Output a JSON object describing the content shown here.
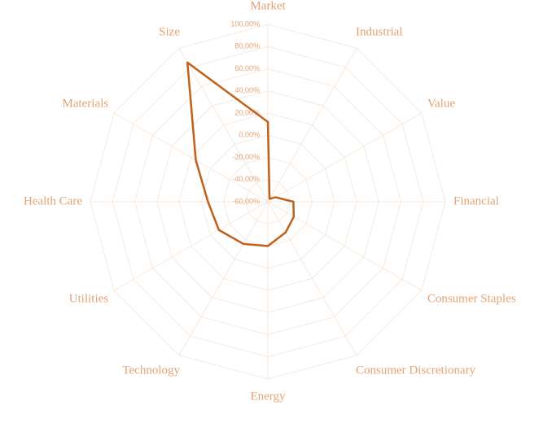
{
  "chart_data": {
    "type": "radar",
    "categories": [
      "Market",
      "Industrial",
      "Value",
      "Financial",
      "Consumer Staples",
      "Consumer Discretionary",
      "Energy",
      "Technology",
      "Utilities",
      "Health Care",
      "Materials",
      "Size"
    ],
    "values": [
      12,
      -57,
      -52,
      -37,
      -33,
      -28,
      -20,
      -16,
      -9,
      -6,
      15,
      85
    ],
    "color": "#c0601a",
    "ylim": [
      -60,
      100
    ],
    "yticks": [
      {
        "value": -60,
        "label": "-60,00%"
      },
      {
        "value": -40,
        "label": "-40,00%"
      },
      {
        "value": -20,
        "label": "-20,00%"
      },
      {
        "value": 0,
        "label": "0,00%"
      },
      {
        "value": 20,
        "label": "20,00%"
      },
      {
        "value": 40,
        "label": "40,00%"
      },
      {
        "value": 60,
        "label": "60,00%"
      },
      {
        "value": 80,
        "label": "80,00%"
      },
      {
        "value": 100,
        "label": "100,00%"
      }
    ],
    "grid": true
  }
}
